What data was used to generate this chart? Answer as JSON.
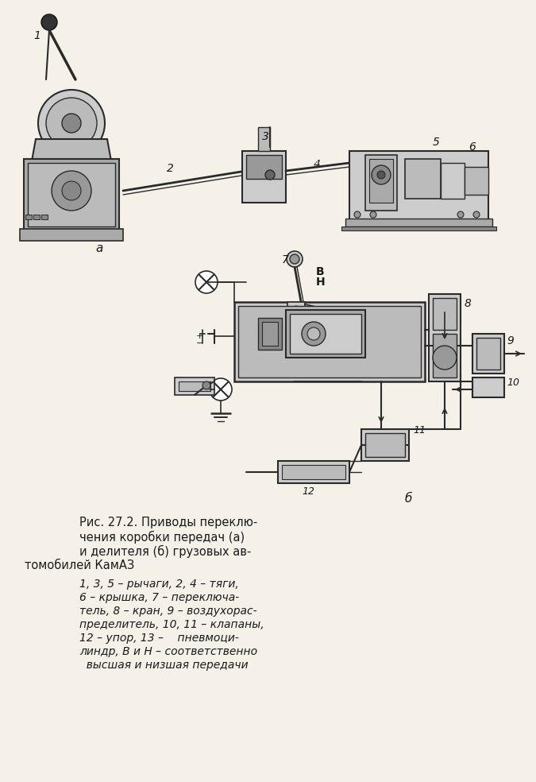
{
  "bg_color": "#f5f0e8",
  "title_line1": "Рис. 27.2. Приводы переклю-",
  "title_line2": "чения коробки передач (а)",
  "title_line3": "и делителя (б) грузовых ав-",
  "title_line4": "томобилей КамАЗ",
  "caption_italic": "1, 3, 5 – рычаги, 2, 4 – тяги,\n6 – крышка, 7 – переключа-\nтель, 8 – кран, 9 – воздухорас-\nпределитель, 10, 11 – клапаны,\n12 – упор, 13 –    пневмоци-\nлиндр, В и Н – соответственно\n  высшая и низшая передачи",
  "label_a": "а",
  "label_b": "б",
  "text_color": "#1a1a1a",
  "line_color": "#2a2a2a",
  "fig_width": 6.75,
  "fig_height": 9.84
}
